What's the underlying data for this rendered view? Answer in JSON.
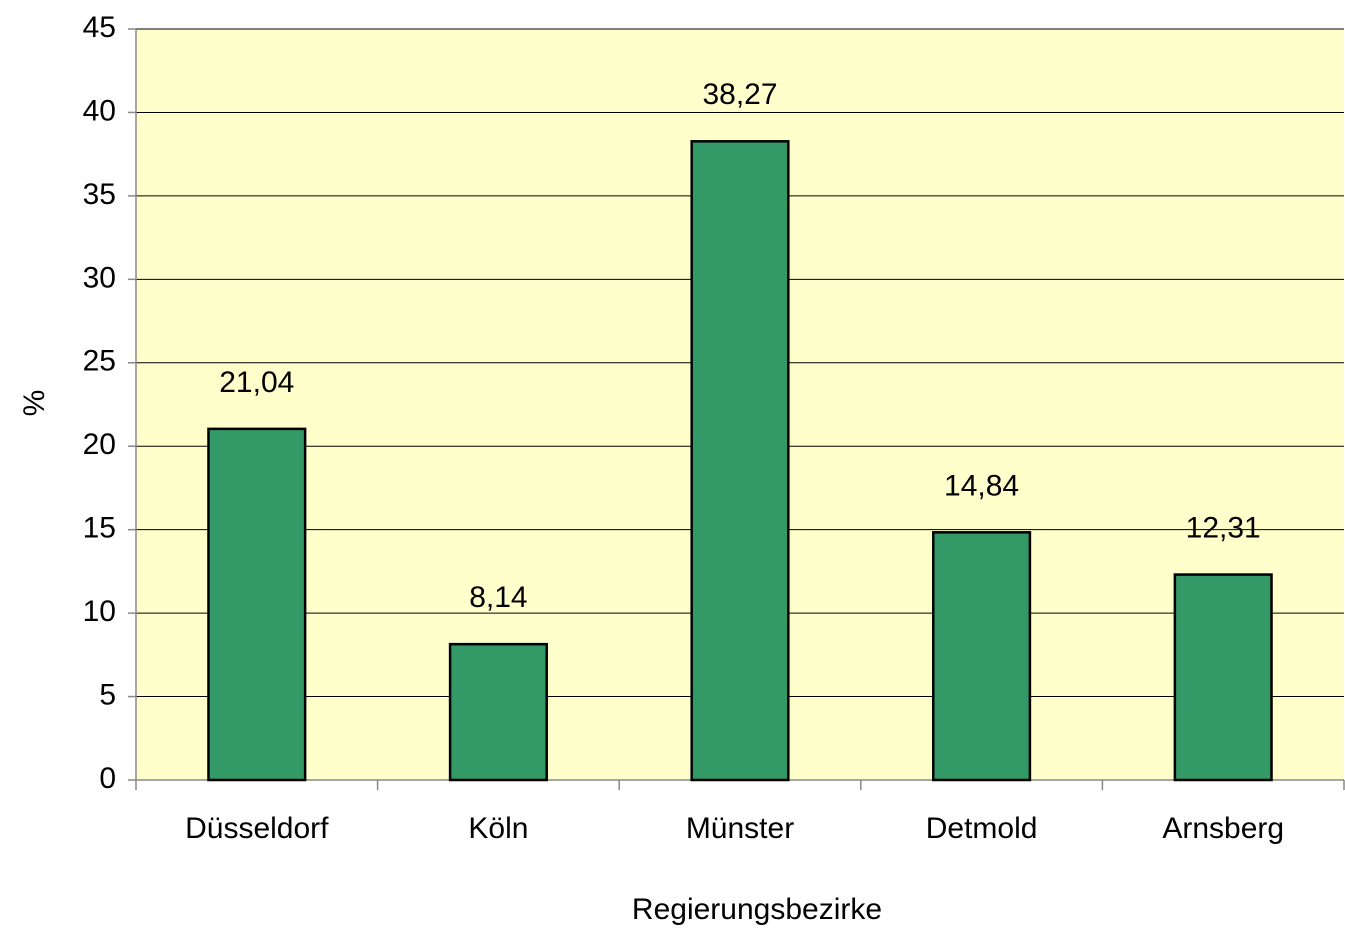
{
  "chart_data": {
    "type": "bar",
    "x_label": "Regierungsbezirke",
    "y_label": "%",
    "categories": [
      "Düsseldorf",
      "Köln",
      "Münster",
      "Detmold",
      "Arnsberg"
    ],
    "values": [
      21.04,
      8.14,
      38.27,
      14.84,
      12.31
    ],
    "value_labels": [
      "21,04",
      "8,14",
      "38,27",
      "14,84",
      "12,31"
    ],
    "color": "#339966",
    "background": "#ffffcc",
    "ylim": [
      0,
      45
    ],
    "yticks": [
      0,
      5,
      10,
      15,
      20,
      25,
      30,
      35,
      40,
      45
    ],
    "grid": true
  }
}
